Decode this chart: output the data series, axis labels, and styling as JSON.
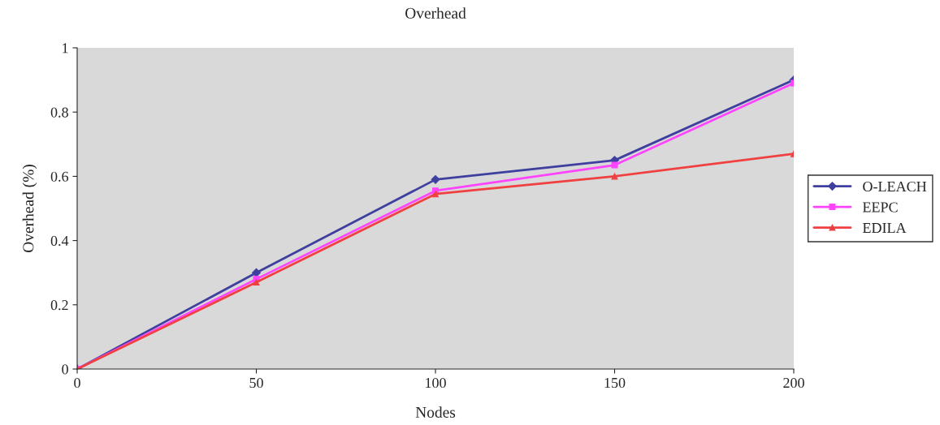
{
  "chart_data": {
    "type": "line",
    "title": "Overhead",
    "xlabel": "Nodes",
    "ylabel": "Overhead (%)",
    "x": [
      0,
      50,
      100,
      150,
      200
    ],
    "series": [
      {
        "name": "O-LEACH",
        "color": "#3f3fa0",
        "marker": "diamond",
        "values": [
          0,
          0.3,
          0.59,
          0.65,
          0.9
        ]
      },
      {
        "name": "EEPC",
        "color": "#ff44ff",
        "marker": "square",
        "values": [
          0,
          0.28,
          0.555,
          0.635,
          0.89
        ]
      },
      {
        "name": "EDILA",
        "color": "#f04040",
        "marker": "triangle",
        "values": [
          0,
          0.27,
          0.545,
          0.6,
          0.67
        ]
      }
    ],
    "xlim": [
      0,
      200
    ],
    "xticks": [
      0,
      50,
      100,
      150,
      200
    ],
    "ylim": [
      0,
      1
    ],
    "yticks": [
      0,
      0.2,
      0.4,
      0.6,
      0.8,
      1
    ],
    "grid": false,
    "legend": "right",
    "line_style": "solid"
  }
}
